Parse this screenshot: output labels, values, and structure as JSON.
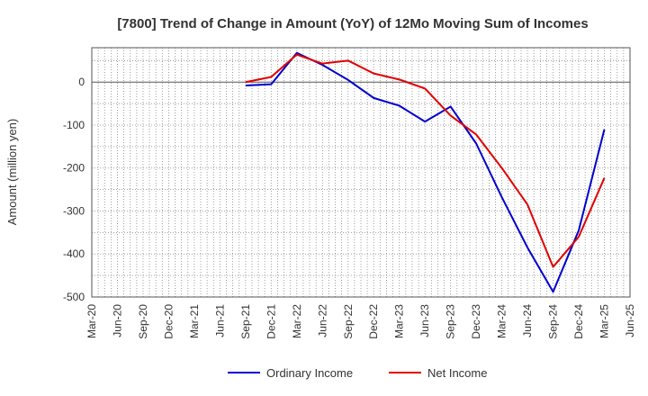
{
  "chart_data": {
    "type": "line",
    "title": "[7800]  Trend of Change in Amount (YoY) of 12Mo Moving Sum of Incomes",
    "ylabel": "Amount (million yen)",
    "xlabel": "",
    "ylim": [
      -500,
      80
    ],
    "yticks": [
      0,
      -100,
      -200,
      -300,
      -400,
      -500
    ],
    "grid": true,
    "legend_position": "bottom",
    "categories": [
      "Mar-20",
      "Jun-20",
      "Sep-20",
      "Dec-20",
      "Mar-21",
      "Jun-21",
      "Sep-21",
      "Dec-21",
      "Mar-22",
      "Jun-22",
      "Sep-22",
      "Dec-22",
      "Mar-23",
      "Jun-23",
      "Sep-23",
      "Dec-23",
      "Mar-24",
      "Jun-24",
      "Sep-24",
      "Dec-24",
      "Mar-25",
      "Jun-25"
    ],
    "series": [
      {
        "name": "Ordinary Income",
        "color": "#0000cc",
        "values": [
          null,
          null,
          null,
          null,
          null,
          null,
          -8,
          -5,
          68,
          40,
          5,
          -37,
          -55,
          -92,
          -57,
          -143,
          -268,
          -385,
          -488,
          -345,
          -110,
          null
        ]
      },
      {
        "name": "Net Income",
        "color": "#e00000",
        "values": [
          null,
          null,
          null,
          null,
          null,
          null,
          0,
          12,
          64,
          43,
          50,
          20,
          6,
          -15,
          -78,
          -122,
          -200,
          -285,
          -430,
          -360,
          -223,
          null
        ]
      }
    ]
  }
}
